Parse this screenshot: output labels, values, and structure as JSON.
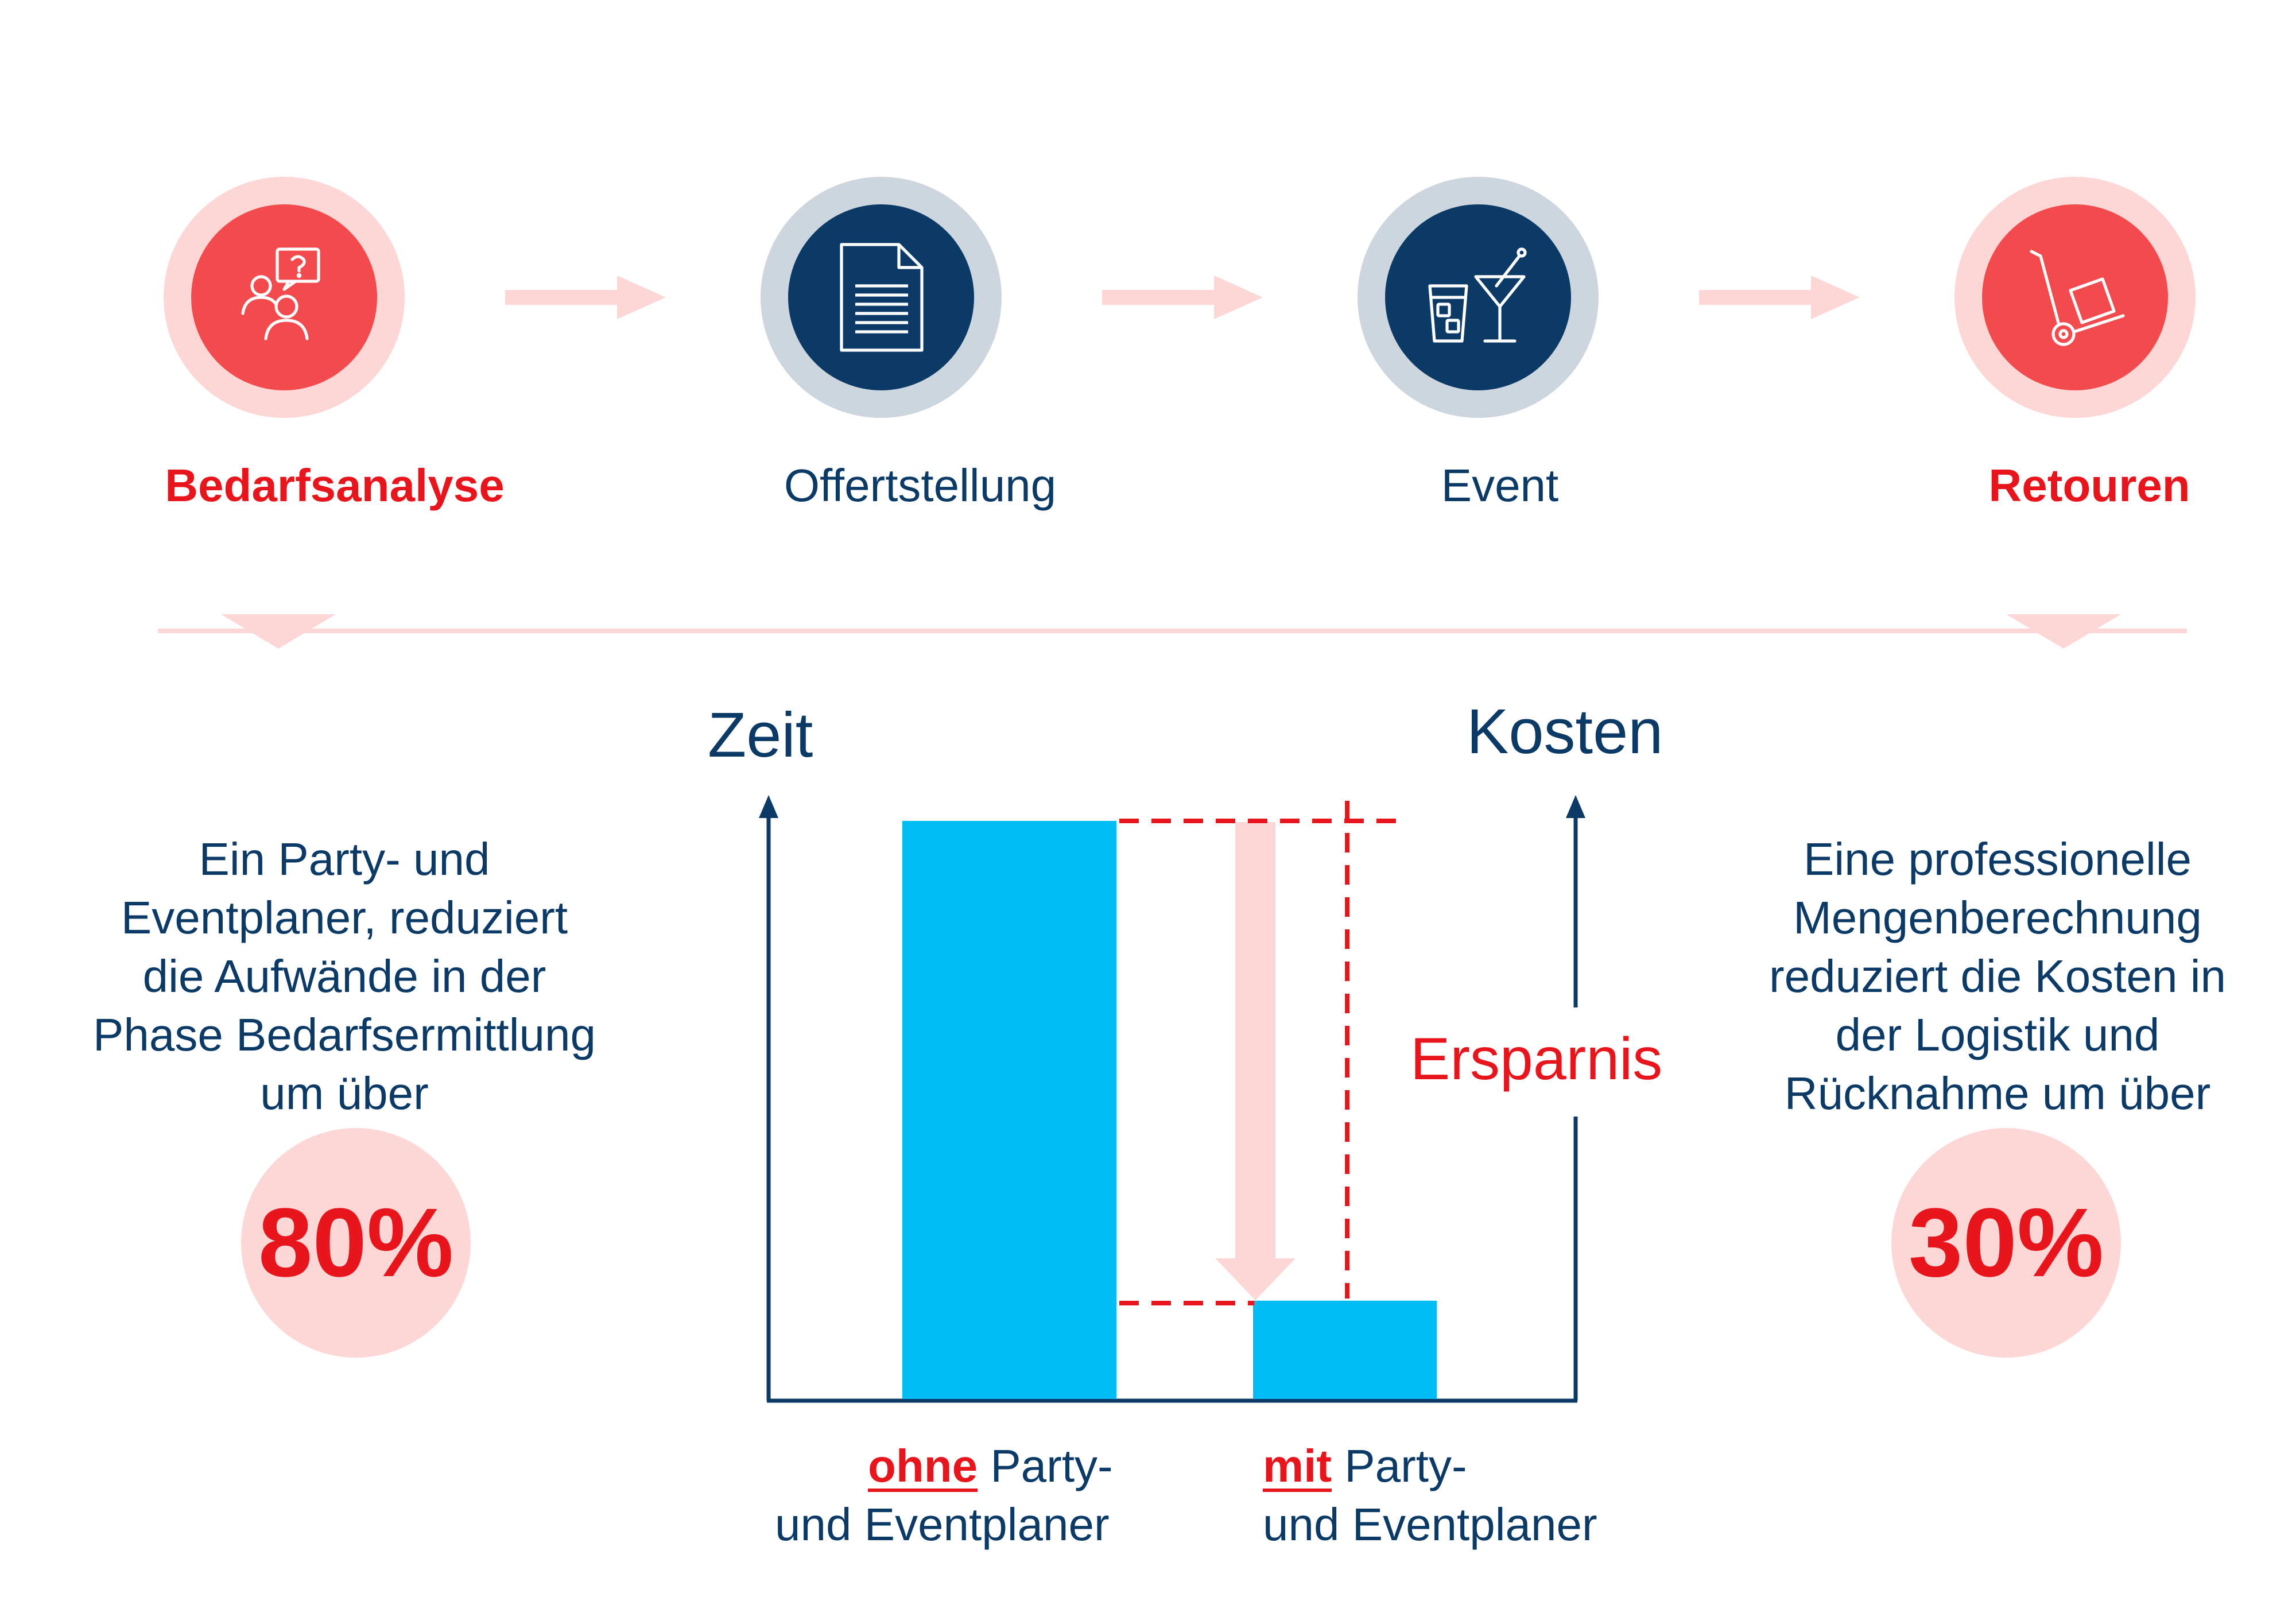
{
  "steps": [
    {
      "label": "Bedarfsanalyse",
      "icon": "people-question-icon",
      "style": "red"
    },
    {
      "label": "Offertstellung",
      "icon": "document-icon",
      "style": "navy"
    },
    {
      "label": "Event",
      "icon": "drinks-icon",
      "style": "navy"
    },
    {
      "label": "Retouren",
      "icon": "hand-truck-icon",
      "style": "red"
    }
  ],
  "left_panel": {
    "description_lines": [
      "Ein Party- und",
      "Eventplaner, reduziert",
      "die Aufwände in der",
      "Phase Bedarfsermittlung",
      "um über"
    ],
    "percent": "80%"
  },
  "right_panel": {
    "description_lines": [
      "Eine professionelle",
      "Mengenberechnung",
      "reduziert die Kosten in",
      "der Logistik und",
      "Rücknahme um über"
    ],
    "percent": "30%"
  },
  "chart": {
    "axis_left_label": "Zeit",
    "axis_right_label": "Kosten",
    "savings_label": "Ersparnis",
    "bars": [
      {
        "emphasis": "ohne",
        "rest_line1": " Party-",
        "line2": "und Eventplaner",
        "value": 1.0
      },
      {
        "emphasis": "mit",
        "rest_line1": " Party-",
        "line2": "und Eventplaner",
        "value": 0.17
      }
    ]
  },
  "colors": {
    "navy": "#0b3a66",
    "red": "#e8161c",
    "red_circle": "#f34a4d",
    "pink": "#fdd6d6",
    "grey_ring": "#cdd5de",
    "bar": "#00bdf5"
  }
}
